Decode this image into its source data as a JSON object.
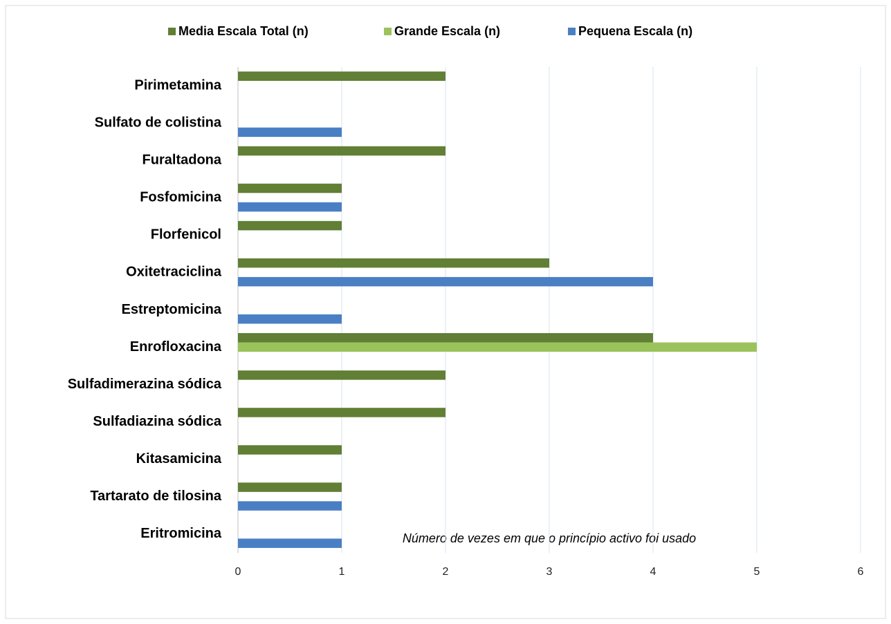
{
  "chart_data": {
    "type": "bar",
    "orientation": "horizontal",
    "categories": [
      "Pirimetamina",
      "Sulfato de colistina",
      "Furaltadona",
      "Fosfomicina",
      "Florfenicol",
      "Oxitetraciclina",
      "Estreptomicina",
      "Enrofloxacina",
      "Sulfadimerazina sódica",
      "Sulfadiazina sódica",
      "Kitasamicina",
      "Tartarato de tilosina",
      "Eritromicina"
    ],
    "series": [
      {
        "name": "Media Escala Total (n)",
        "color": "#617f35",
        "values": [
          2,
          null,
          2,
          1,
          1,
          3,
          null,
          4,
          2,
          2,
          1,
          1,
          null
        ]
      },
      {
        "name": "Grande Escala (n)",
        "color": "#9bc35b",
        "values": [
          null,
          null,
          null,
          null,
          null,
          null,
          null,
          5,
          null,
          null,
          null,
          null,
          null
        ]
      },
      {
        "name": "Pequena Escala (n)",
        "color": "#4a7fc4",
        "values": [
          null,
          1,
          null,
          1,
          null,
          4,
          1,
          null,
          null,
          null,
          null,
          1,
          1
        ]
      }
    ],
    "xlabel": "Número de vezes em que o princípio activo foi usado",
    "xlim": [
      0,
      6
    ],
    "xticks": [
      0,
      1,
      2,
      3,
      4,
      5,
      6
    ],
    "grid": true,
    "legend": "top"
  }
}
